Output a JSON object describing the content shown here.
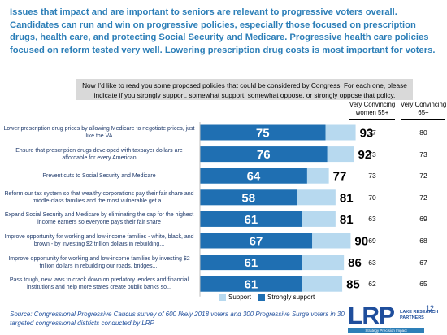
{
  "headline": "Issues that impact and are important to seniors are relevant to progressive voters overall. Candidates can run and win on progressive policies, especially those focused on prescription drugs, health care, and protecting Social Security and Medicare. Progressive health care policies focused on reform tested very well. Lowering prescription drug costs is most important for voters.",
  "question": "Now I’d like to read you some proposed policies that could be considered by Congress. For each one, please indicate if you strongly support, somewhat support, somewhat oppose, or strongly oppose that policy.",
  "columns": {
    "women55": "Very Convincing women 55+",
    "age65": "Very Convincing 65+"
  },
  "colors": {
    "strong": "#1f6fb2",
    "support": "#b7d9ef"
  },
  "legend": {
    "support": "Support",
    "strong": "Strongly support"
  },
  "source": "Source: Congressional Progressive Caucus survey of 600 likely 2018 voters and 300 Progressive Surge voters in 30 targeted congressional districts conducted by LRP",
  "logo": {
    "mark": "LRP",
    "sub": "LAKE RESEARCH PARTNERS",
    "tagline": "Strategy  Precision  Impact",
    "page": "12"
  },
  "chart_data": {
    "type": "bar",
    "orientation": "horizontal",
    "categories": [
      "Lower prescription drug prices by allowing Medicare to negotiate prices, just like the VA",
      "Ensure that prescription drugs developed with taxpayer dollars are affordable for every American",
      "Prevent cuts to Social Security and Medicare",
      "Reform our tax system so that wealthy corporations pay their fair share and middle-class families and the most vulnerable get a...",
      "Expand Social Security and Medicare by eliminating the cap for the highest income earners so everyone pays their fair share",
      "Improve opportunity for working and low-income families - white, black, and brown - by investing $2 trillion dollars in rebuilding...",
      "Improve opportunity for working and low-income families by investing $2 trillion dollars in rebuilding our roads, bridges,...",
      "Pass tough, new laws to crack down on predatory lenders and financial institutions and help more states create public banks so..."
    ],
    "series": [
      {
        "name": "Strongly support",
        "values": [
          75,
          76,
          64,
          58,
          61,
          67,
          61,
          61
        ]
      },
      {
        "name": "Support",
        "values": [
          93,
          92,
          77,
          81,
          81,
          90,
          86,
          85
        ]
      }
    ],
    "xlim": [
      0,
      100
    ],
    "table": {
      "women55": [
        77,
        73,
        73,
        70,
        63,
        69,
        63,
        62
      ],
      "age65": [
        80,
        73,
        72,
        72,
        69,
        68,
        67,
        65
      ]
    }
  }
}
